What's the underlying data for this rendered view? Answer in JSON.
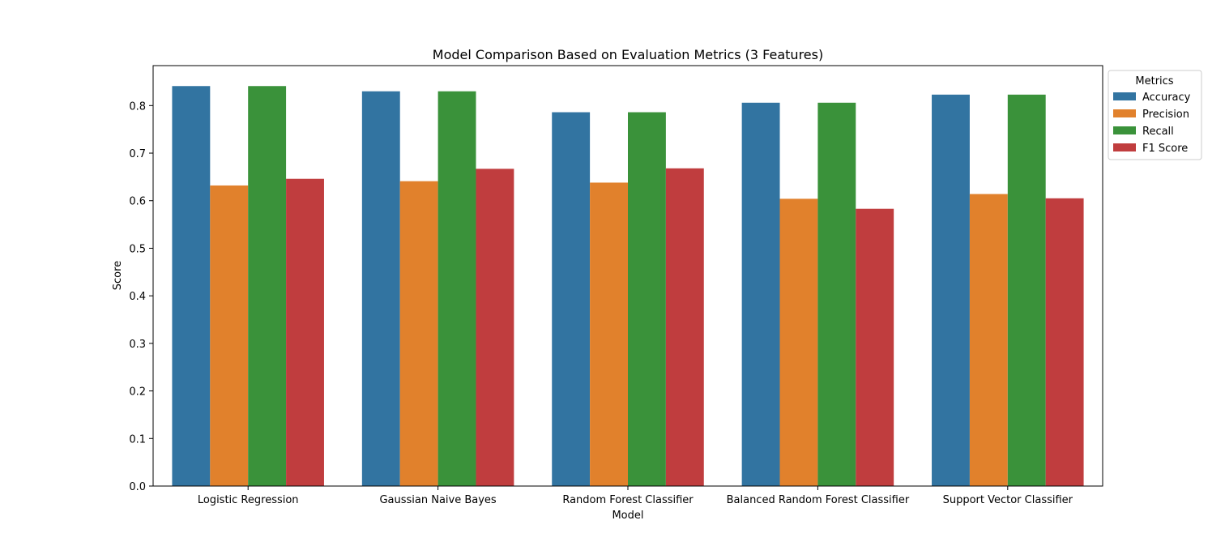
{
  "chart_data": {
    "type": "bar",
    "title": "Model Comparison Based on Evaluation Metrics (3 Features)",
    "xlabel": "Model",
    "ylabel": "Score",
    "ylim": [
      0,
      0.884
    ],
    "yticks": [
      "0.0",
      "0.1",
      "0.2",
      "0.3",
      "0.4",
      "0.5",
      "0.6",
      "0.7",
      "0.8"
    ],
    "categories": [
      "Logistic Regression",
      "Gaussian Naive Bayes",
      "Random Forest Classifier",
      "Balanced Random Forest Classifier",
      "Support Vector Classifier"
    ],
    "legend_title": "Metrics",
    "legend_position": "outside-top-right",
    "grid": false,
    "series": [
      {
        "name": "Accuracy",
        "color": "#3274a1",
        "values": [
          0.841,
          0.83,
          0.786,
          0.806,
          0.823
        ]
      },
      {
        "name": "Precision",
        "color": "#e1812c",
        "values": [
          0.632,
          0.641,
          0.638,
          0.604,
          0.614
        ]
      },
      {
        "name": "Recall",
        "color": "#3a923a",
        "values": [
          0.841,
          0.83,
          0.786,
          0.806,
          0.823
        ]
      },
      {
        "name": "F1 Score",
        "color": "#c03d3e",
        "values": [
          0.646,
          0.667,
          0.668,
          0.583,
          0.605
        ]
      }
    ]
  }
}
